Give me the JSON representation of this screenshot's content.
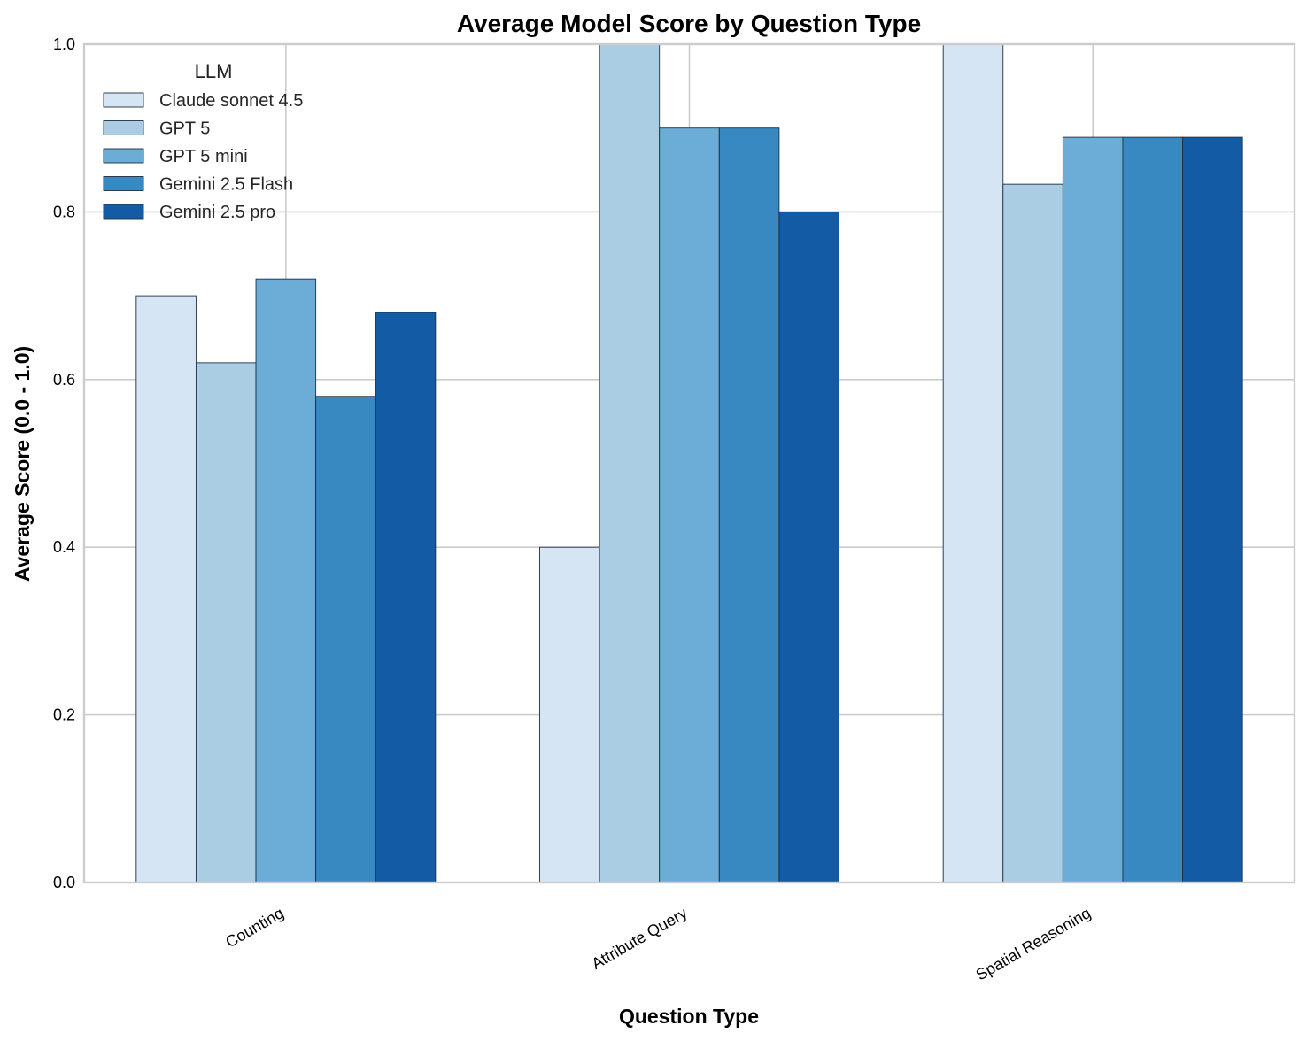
{
  "chart_data": {
    "type": "bar",
    "title": "Average Model Score by Question Type",
    "xlabel": "Question Type",
    "ylabel": "Average Score (0.0 - 1.0)",
    "categories": [
      "Counting",
      "Attribute Query",
      "Spatial Reasoning"
    ],
    "ylim": [
      0,
      1
    ],
    "yticks": [
      "0.0",
      "0.2",
      "0.4",
      "0.6",
      "0.8",
      "1.0"
    ],
    "grid": true,
    "legend": {
      "title": "LLM",
      "placement": "top-left"
    },
    "series": [
      {
        "name": "Claude sonnet 4.5",
        "color": "#d6e5f4",
        "values": [
          0.7,
          0.4,
          1.0
        ]
      },
      {
        "name": "GPT 5",
        "color": "#abcde4",
        "values": [
          0.62,
          1.0,
          0.833
        ]
      },
      {
        "name": "GPT 5 mini",
        "color": "#6badd6",
        "values": [
          0.72,
          0.9,
          0.889
        ]
      },
      {
        "name": "Gemini 2.5 Flash",
        "color": "#3889c1",
        "values": [
          0.58,
          0.9,
          0.889
        ]
      },
      {
        "name": "Gemini 2.5 pro",
        "color": "#135ca5",
        "values": [
          0.68,
          0.8,
          0.889
        ]
      }
    ]
  }
}
